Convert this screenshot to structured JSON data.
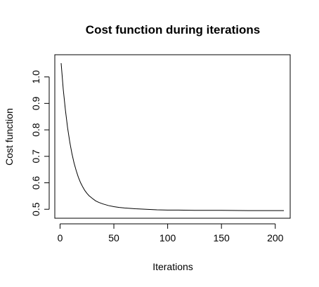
{
  "chart_data": {
    "type": "line",
    "title": "Cost function during iterations",
    "xlabel": "Iterations",
    "ylabel": "Cost function",
    "xlim": [
      1,
      208
    ],
    "ylim": [
      0.49,
      1.06
    ],
    "xticks": [
      0,
      50,
      100,
      150,
      200
    ],
    "yticks": [
      0.5,
      0.6,
      0.7,
      0.8,
      0.9,
      1.0
    ],
    "xtick_labels": [
      "0",
      "50",
      "100",
      "150",
      "200"
    ],
    "ytick_labels": [
      "0.5",
      "0.6",
      "0.7",
      "0.8",
      "0.9",
      "1.0"
    ],
    "line_color": "#000000",
    "grid": false,
    "series": [
      {
        "x": [
          1,
          3,
          5,
          7,
          9,
          11,
          13,
          15,
          17,
          19,
          21,
          23,
          25,
          27,
          30,
          33,
          36,
          40,
          45,
          50,
          55,
          60,
          70,
          80,
          90,
          100,
          110,
          125,
          150,
          175,
          200,
          208
        ],
        "y": [
          1.052,
          0.952,
          0.874,
          0.808,
          0.755,
          0.711,
          0.675,
          0.646,
          0.621,
          0.601,
          0.585,
          0.571,
          0.56,
          0.551,
          0.541,
          0.532,
          0.526,
          0.52,
          0.514,
          0.51,
          0.507,
          0.505,
          0.502,
          0.5,
          0.498,
          0.497,
          0.497,
          0.496,
          0.496,
          0.495,
          0.495,
          0.495
        ]
      }
    ]
  }
}
